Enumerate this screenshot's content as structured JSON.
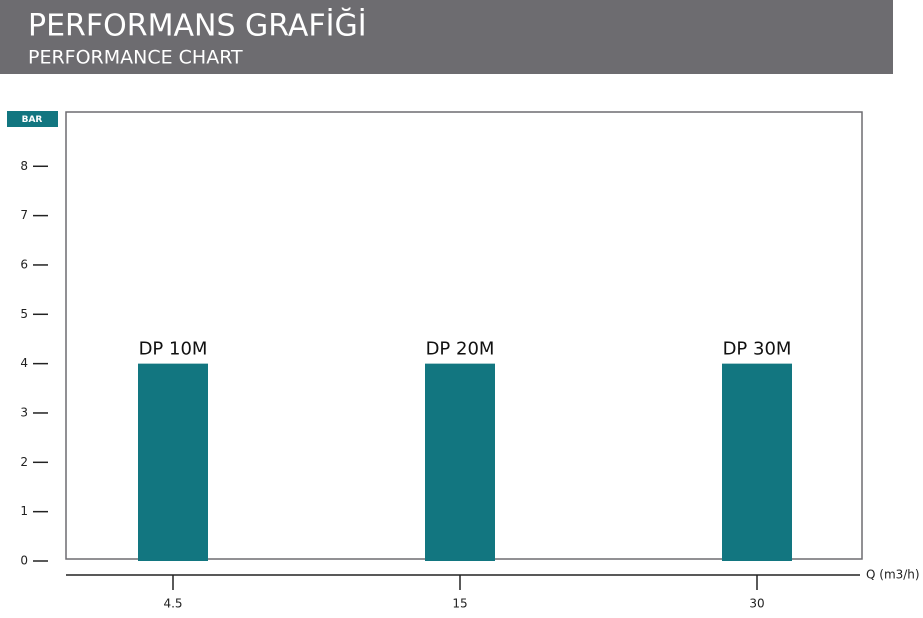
{
  "chart_data": {
    "type": "bar",
    "title": "PERFORMANS GRAFİĞİ",
    "subtitle": "PERFORMANCE CHART",
    "y_label": "BAR",
    "x_label": "Q (m3/h)",
    "categories": [
      "4.5",
      "15",
      "30"
    ],
    "values": [
      4,
      4,
      4
    ],
    "bar_labels": [
      "DP 10M",
      "DP 20M",
      "DP 30M"
    ],
    "color": "#127680",
    "ylim": [
      0,
      9.1
    ],
    "yticks": [
      0,
      1,
      2,
      3,
      4,
      5,
      6,
      7,
      8
    ]
  }
}
